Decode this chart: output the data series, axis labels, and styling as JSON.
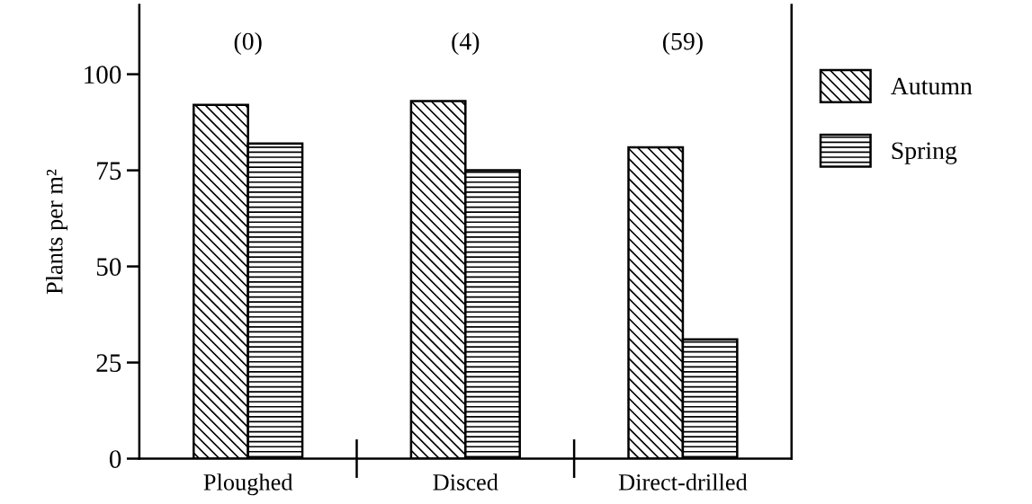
{
  "chart_data": {
    "type": "bar",
    "ylabel": "Plants per m²",
    "categories": [
      "Ploughed",
      "Disced",
      "Direct-drilled"
    ],
    "series": [
      {
        "name": "Autumn",
        "color": "#000000",
        "values": [
          92,
          93,
          81
        ]
      },
      {
        "name": "Spring",
        "color": "#000000",
        "values": [
          82,
          75,
          31
        ]
      }
    ],
    "ylim": [
      0,
      118
    ],
    "yticks": [
      0,
      25,
      50,
      75,
      100
    ],
    "annotations": [
      "(0)",
      "(4)",
      "(59)"
    ],
    "grid": false,
    "legend": "right"
  }
}
